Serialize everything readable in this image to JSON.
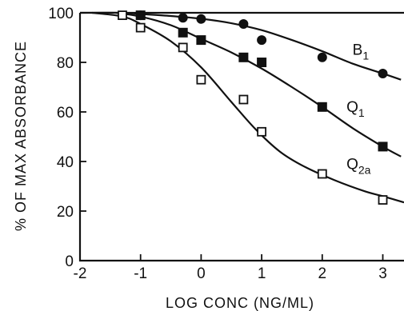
{
  "chart_data": {
    "type": "scatter",
    "xlabel": "LOG CONC (NG/ML)",
    "ylabel": "% OF MAX ABSORBANCE",
    "xlim": [
      -2,
      3.35
    ],
    "ylim": [
      0,
      100
    ],
    "x_ticks": [
      "-2",
      "-1",
      "0",
      "1",
      "2",
      "3"
    ],
    "y_ticks": [
      "0",
      "20",
      "40",
      "60",
      "80",
      "100"
    ],
    "grid": false,
    "series": [
      {
        "name": "B1",
        "label_main": "B",
        "label_sub": "1",
        "marker": "filled-circle",
        "points": [
          [
            -1,
            99
          ],
          [
            -0.3,
            98
          ],
          [
            0,
            97.5
          ],
          [
            0.7,
            95.5
          ],
          [
            1,
            89
          ],
          [
            2,
            82
          ],
          [
            3,
            75.5
          ]
        ],
        "curve": [
          [
            -2,
            100
          ],
          [
            -1.3,
            100
          ],
          [
            -1,
            99.5
          ],
          [
            -0.5,
            98.7
          ],
          [
            0,
            97.6
          ],
          [
            0.5,
            95.8
          ],
          [
            1,
            93
          ],
          [
            1.5,
            89
          ],
          [
            2,
            84.5
          ],
          [
            2.5,
            79.5
          ],
          [
            3,
            75.5
          ],
          [
            3.3,
            73
          ]
        ],
        "label_at": [
          2.5,
          83
        ]
      },
      {
        "name": "Q1",
        "label_main": "Q",
        "label_sub": "1",
        "marker": "filled-square",
        "points": [
          [
            -1,
            99
          ],
          [
            -0.3,
            92
          ],
          [
            0,
            89
          ],
          [
            0.7,
            82
          ],
          [
            1,
            80
          ],
          [
            2,
            62
          ],
          [
            3,
            46
          ]
        ],
        "curve": [
          [
            -1.4,
            100
          ],
          [
            -1,
            98.5
          ],
          [
            -0.5,
            95
          ],
          [
            0,
            89.5
          ],
          [
            0.5,
            84
          ],
          [
            1,
            77.5
          ],
          [
            1.5,
            70
          ],
          [
            2,
            62
          ],
          [
            2.5,
            53.5
          ],
          [
            3,
            46
          ],
          [
            3.3,
            42
          ]
        ],
        "label_at": [
          2.4,
          60
        ]
      },
      {
        "name": "Q2a",
        "label_main": "Q",
        "label_sub": "2a",
        "marker": "open-square",
        "points": [
          [
            -1.3,
            99
          ],
          [
            -1,
            94
          ],
          [
            -0.3,
            86
          ],
          [
            0,
            73
          ],
          [
            0.7,
            65
          ],
          [
            1,
            52
          ],
          [
            2,
            35
          ],
          [
            3,
            24.5
          ]
        ],
        "curve": [
          [
            -1.8,
            100
          ],
          [
            -1.3,
            98.5
          ],
          [
            -1,
            95.5
          ],
          [
            -0.5,
            88.5
          ],
          [
            0,
            78
          ],
          [
            0.5,
            64
          ],
          [
            0.9,
            53
          ],
          [
            1.3,
            44
          ],
          [
            1.7,
            38
          ],
          [
            2.2,
            32.5
          ],
          [
            2.7,
            28
          ],
          [
            3,
            26
          ],
          [
            3.35,
            23.5
          ]
        ],
        "label_at": [
          2.4,
          37
        ]
      }
    ]
  }
}
